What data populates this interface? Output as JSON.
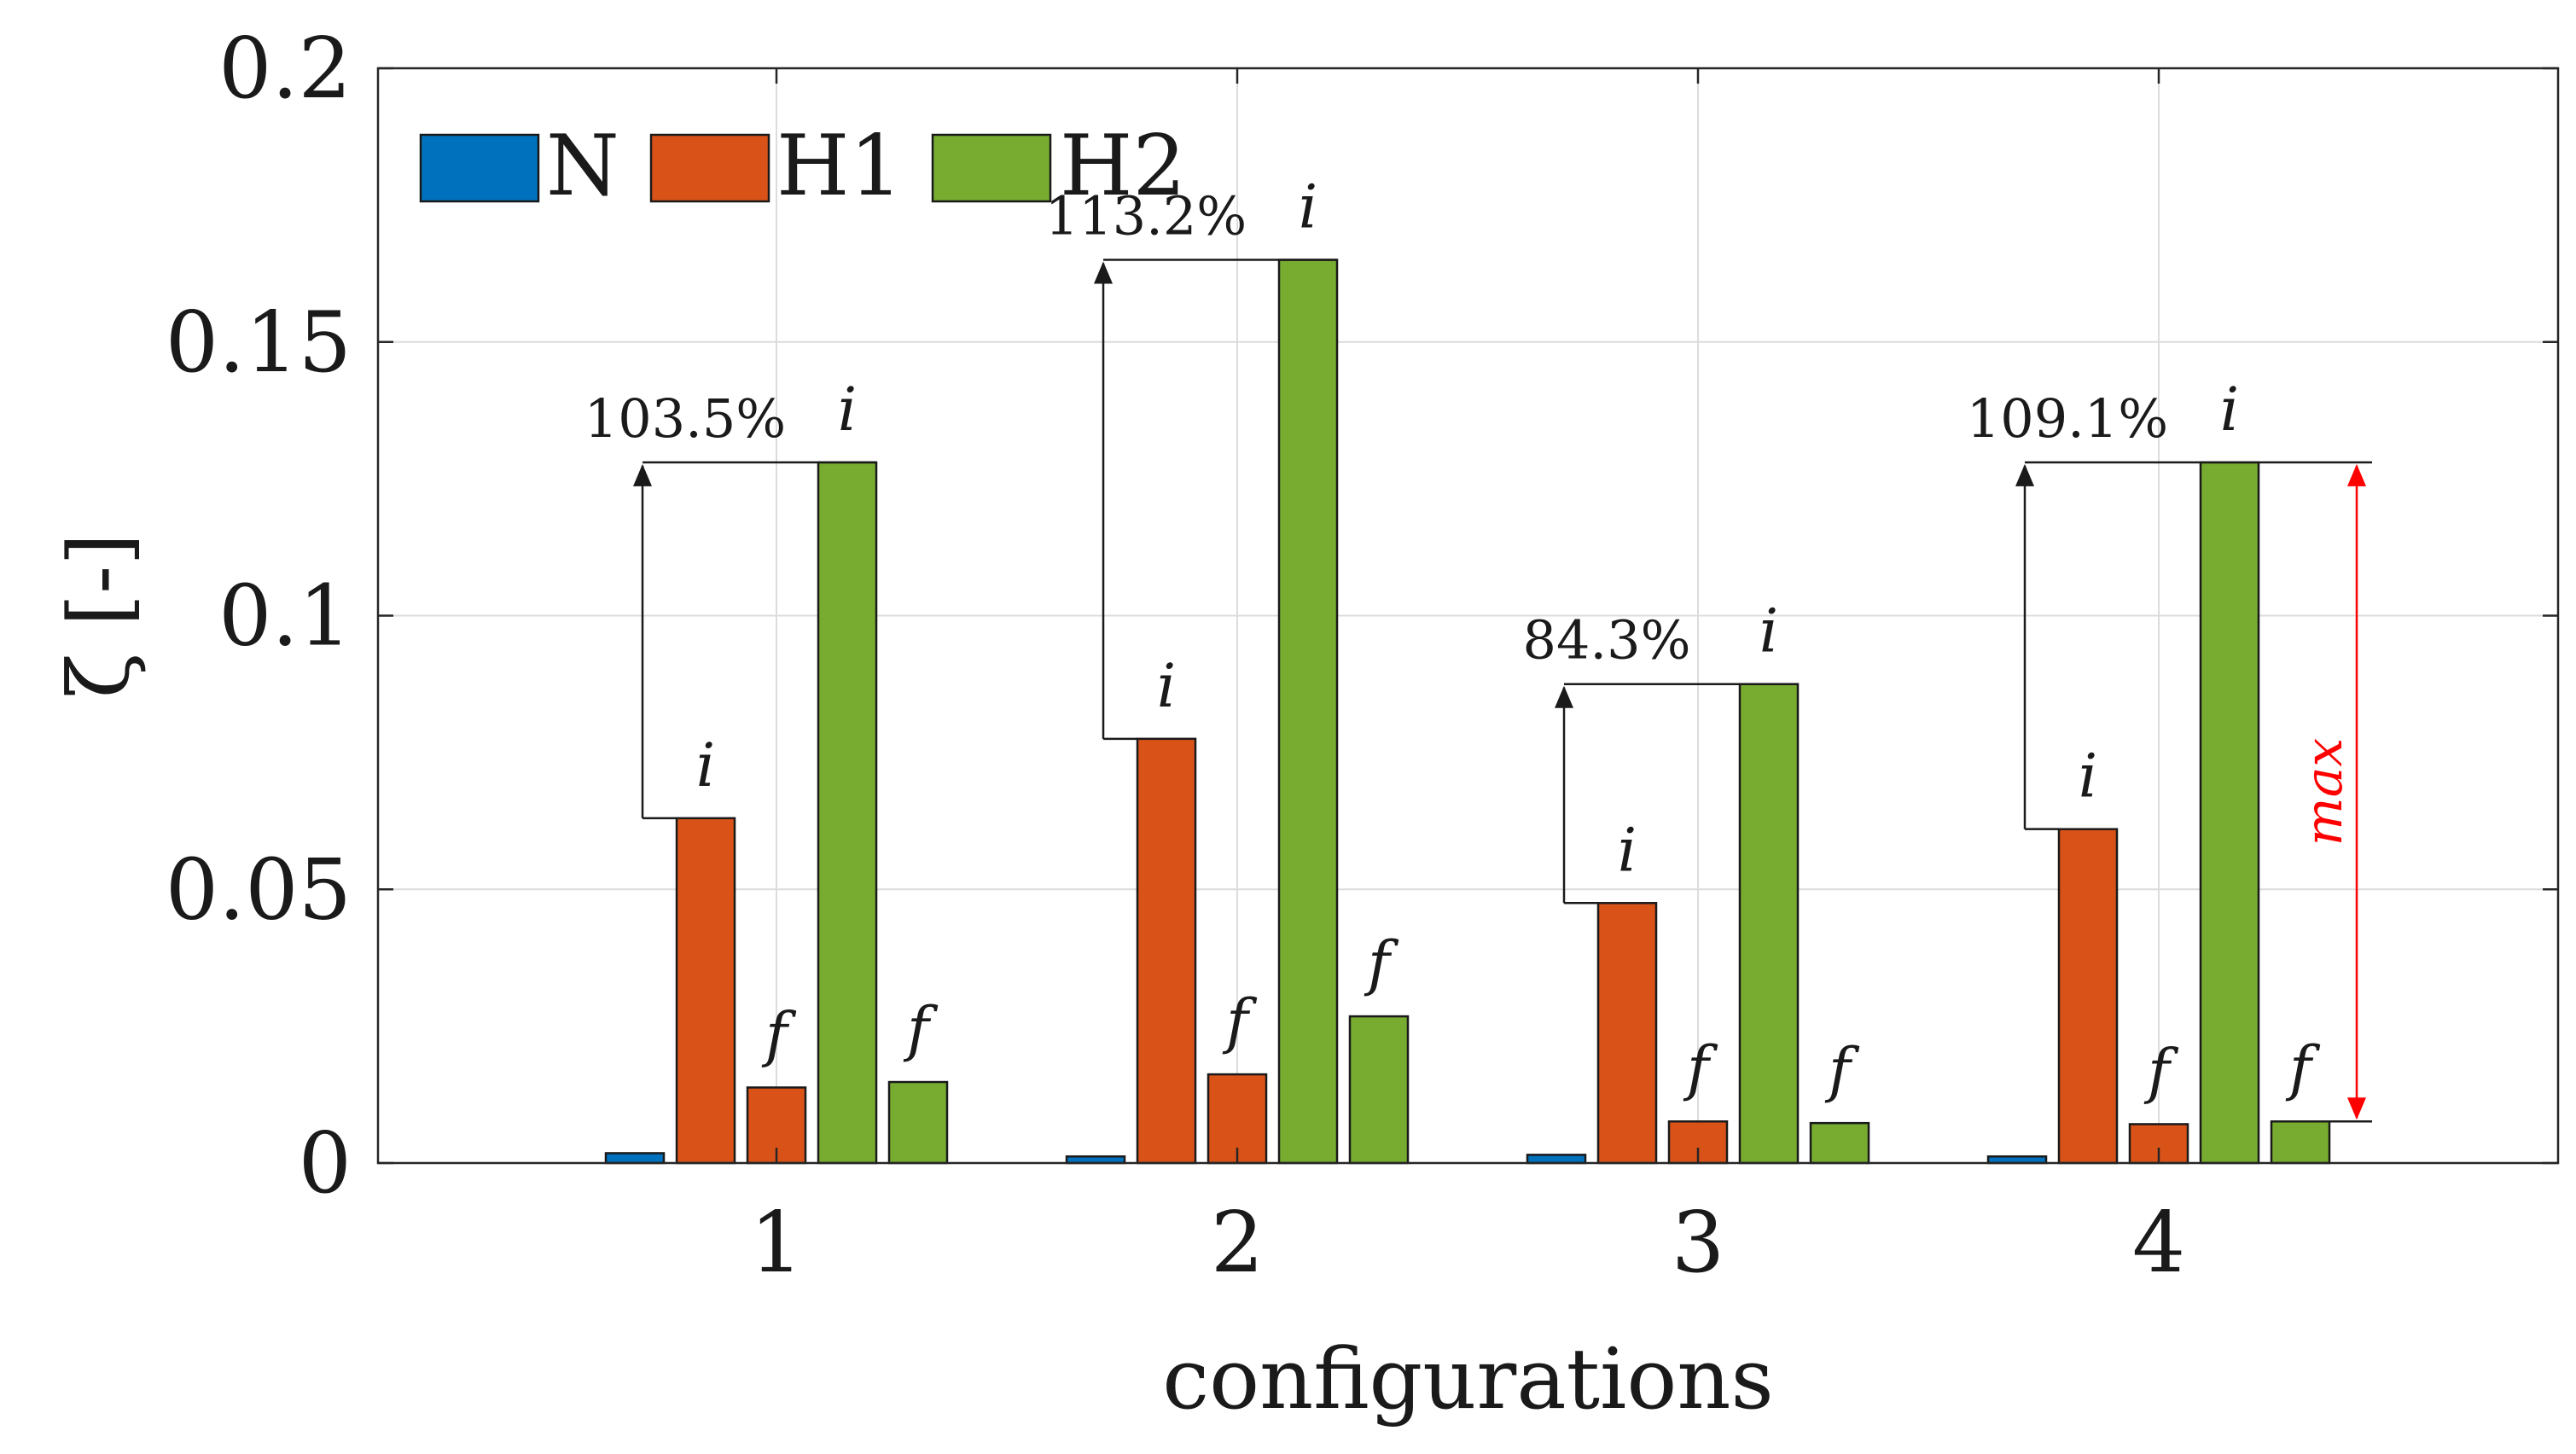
{
  "chart_data": {
    "type": "bar",
    "xlabel": "configurations",
    "ylabel": "ζ [-]",
    "categories": [
      "1",
      "2",
      "3",
      "4"
    ],
    "ylim": [
      0,
      0.2
    ],
    "yticks": [
      0,
      0.05,
      0.1,
      0.15,
      0.2
    ],
    "ytick_labels": [
      "0",
      "0.05",
      "0.1",
      "0.15",
      "0.2"
    ],
    "grid": true,
    "legend_position": "top-left",
    "legend": [
      "N",
      "H1",
      "H2"
    ],
    "colors": {
      "N": "#0072BD",
      "H1": "#D95319",
      "H2": "#77AC30"
    },
    "bar_series": [
      {
        "legend": "N",
        "color_key": "N",
        "values": [
          0.0018,
          0.0012,
          0.0015,
          0.0012
        ]
      },
      {
        "legend": "H1",
        "color_key": "H1",
        "top_label": "i",
        "values": [
          0.063,
          0.0775,
          0.0475,
          0.061
        ]
      },
      {
        "legend": "H1",
        "color_key": "H1",
        "top_label": "f",
        "values": [
          0.0138,
          0.0162,
          0.0076,
          0.0071
        ]
      },
      {
        "legend": "H2",
        "color_key": "H2",
        "top_label": "i",
        "values": [
          0.128,
          0.165,
          0.0875,
          0.128
        ]
      },
      {
        "legend": "H2",
        "color_key": "H2",
        "top_label": "f",
        "values": [
          0.0148,
          0.0268,
          0.0073,
          0.0076
        ]
      }
    ],
    "increase_labels": [
      "103.5%",
      "113.2%",
      "84.3%",
      "109.1%"
    ],
    "max_label": "max",
    "max_label_category": "4"
  }
}
